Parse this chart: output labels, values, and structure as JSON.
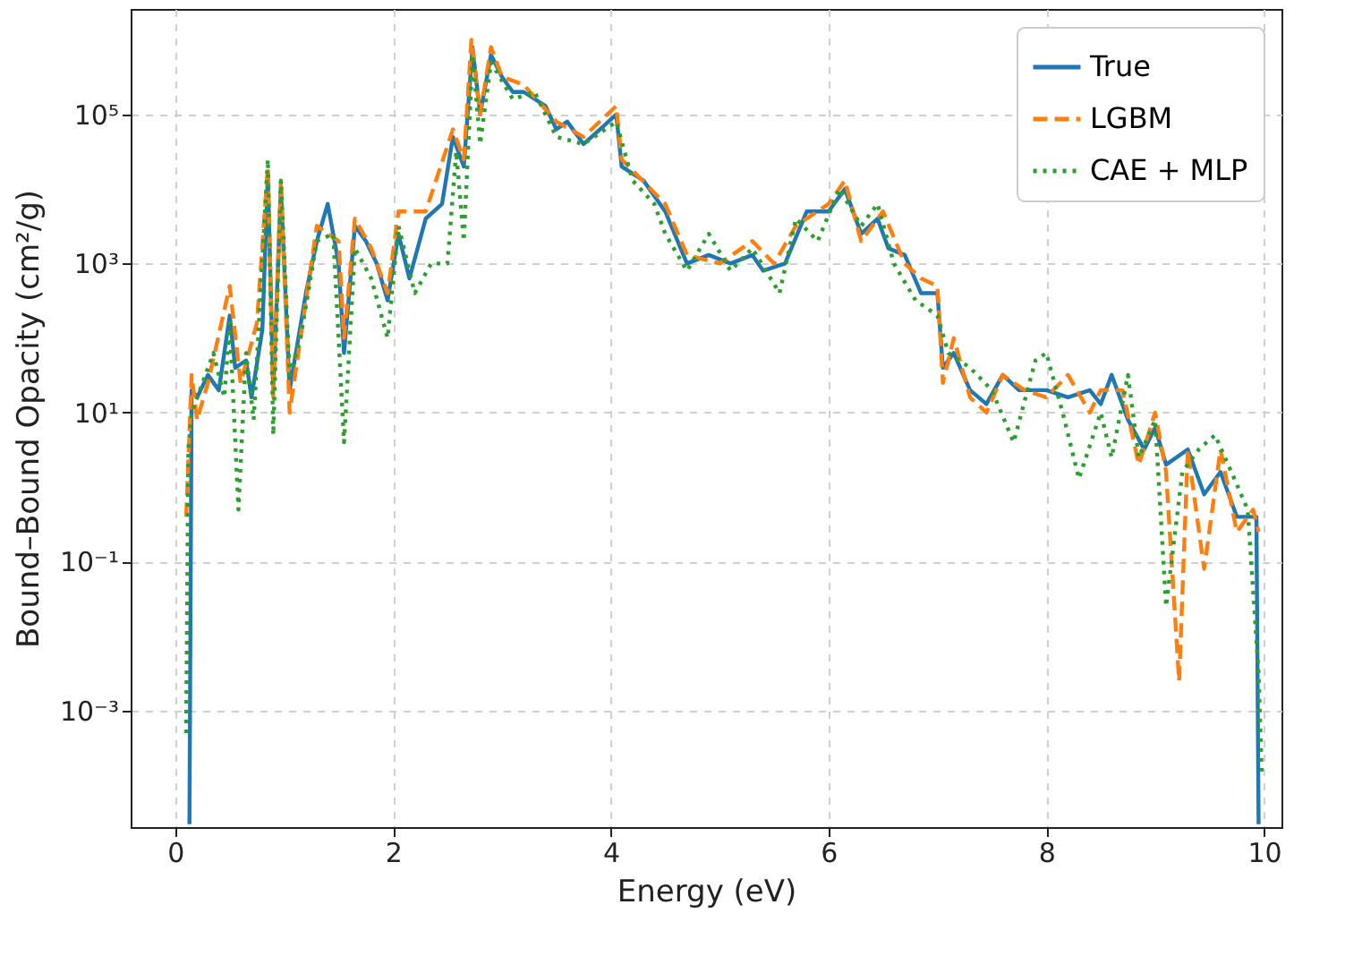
{
  "chart_data": {
    "type": "line",
    "xlabel": "Energy (eV)",
    "ylabel": "Bound–Bound Opacity (cm²/g)",
    "log": "y",
    "xlim": [
      -0.41,
      10.16
    ],
    "xticks": [
      0,
      2,
      4,
      6,
      8,
      10
    ],
    "ylim": [
      2.75e-05,
      2600000
    ],
    "yticks": [
      {
        "value": 0.001,
        "label": "10⁻³"
      },
      {
        "value": 0.1,
        "label": "10⁻¹"
      },
      {
        "value": 10,
        "label": "10¹"
      },
      {
        "value": 1000,
        "label": "10³"
      },
      {
        "value": 100000,
        "label": "10⁵"
      }
    ],
    "grid": true,
    "legend": "top right",
    "series": [
      {
        "name": "True",
        "color": "#1f77b4",
        "line_style": "solid",
        "x": [
          0.13,
          0.15,
          0.2,
          0.3,
          0.4,
          0.5,
          0.55,
          0.65,
          0.7,
          0.8,
          0.85,
          0.9,
          0.97,
          1.05,
          1.2,
          1.3,
          1.4,
          1.5,
          1.55,
          1.65,
          1.75,
          1.85,
          1.95,
          2.05,
          2.15,
          2.3,
          2.45,
          2.55,
          2.65,
          2.73,
          2.8,
          2.9,
          3.0,
          3.1,
          3.2,
          3.4,
          3.5,
          3.6,
          3.75,
          3.9,
          4.05,
          4.1,
          4.3,
          4.5,
          4.7,
          4.9,
          5.1,
          5.3,
          5.4,
          5.6,
          5.8,
          6.0,
          6.15,
          6.3,
          6.45,
          6.55,
          6.7,
          6.85,
          7.0,
          7.05,
          7.15,
          7.3,
          7.45,
          7.6,
          7.75,
          8.0,
          8.2,
          8.4,
          8.5,
          8.6,
          8.75,
          8.9,
          9.0,
          9.1,
          9.3,
          9.45,
          9.6,
          9.75,
          9.93,
          9.95
        ],
        "values": [
          3e-05,
          20,
          16,
          32,
          20,
          200,
          40,
          50,
          16,
          130,
          16000,
          20,
          10000,
          20,
          400,
          2000,
          6300,
          1000,
          63,
          3200,
          2000,
          1000,
          320,
          2500,
          630,
          4000,
          6300,
          50000,
          20000,
          800000,
          100000,
          630000,
          320000,
          200000,
          200000,
          130000,
          63000,
          80000,
          40000,
          63000,
          100000,
          20000,
          13000,
          5000,
          1000,
          1300,
          1000,
          1300,
          800,
          1000,
          5000,
          5000,
          10000,
          2500,
          4000,
          1600,
          1300,
          400,
          400,
          40,
          63,
          20,
          13,
          32,
          20,
          20,
          16,
          20,
          13,
          32,
          8,
          3.2,
          6.3,
          2,
          3.2,
          0.8,
          1.6,
          0.4,
          0.4,
          3e-05
        ]
      },
      {
        "name": "LGBM",
        "color": "#ff7f0e",
        "line_style": "dashed",
        "x": [
          0.1,
          0.15,
          0.2,
          0.3,
          0.5,
          0.6,
          0.75,
          0.85,
          0.9,
          0.97,
          1.05,
          1.3,
          1.5,
          1.55,
          1.65,
          1.8,
          1.95,
          2.05,
          2.3,
          2.55,
          2.65,
          2.72,
          2.8,
          2.9,
          3.0,
          3.2,
          3.5,
          3.75,
          4.05,
          4.1,
          4.5,
          4.7,
          5.0,
          5.3,
          5.5,
          5.7,
          6.0,
          6.15,
          6.3,
          6.5,
          6.7,
          6.85,
          7.0,
          7.05,
          7.15,
          7.3,
          7.45,
          7.6,
          7.8,
          8.0,
          8.2,
          8.4,
          8.5,
          8.7,
          8.85,
          9.0,
          9.1,
          9.22,
          9.3,
          9.45,
          9.6,
          9.75,
          9.9,
          9.95
        ],
        "values": [
          0.4,
          32,
          8,
          25,
          500,
          25,
          160,
          20000,
          16,
          13000,
          10,
          3200,
          2000,
          100,
          4000,
          1600,
          400,
          5000,
          5000,
          63000,
          25000,
          1000000,
          100000,
          800000,
          320000,
          250000,
          80000,
          50000,
          130000,
          25000,
          6300,
          1300,
          1000,
          2000,
          1000,
          3200,
          6300,
          13000,
          2000,
          5000,
          1000,
          630,
          500,
          25,
          100,
          16,
          10,
          32,
          20,
          16,
          32,
          10,
          20,
          20,
          2,
          10,
          1.6,
          0.0025,
          3.2,
          0.08,
          3.2,
          0.25,
          0.5,
          0.25
        ]
      },
      {
        "name": "CAE + MLP",
        "color": "#2ca02c",
        "line_style": "dotted",
        "x": [
          0.1,
          0.12,
          0.15,
          0.25,
          0.35,
          0.45,
          0.5,
          0.58,
          0.65,
          0.72,
          0.85,
          0.9,
          0.97,
          1.05,
          1.15,
          1.3,
          1.45,
          1.55,
          1.65,
          1.8,
          1.95,
          2.05,
          2.2,
          2.35,
          2.5,
          2.58,
          2.65,
          2.73,
          2.8,
          2.9,
          3.1,
          3.3,
          3.5,
          3.75,
          4.05,
          4.2,
          4.4,
          4.5,
          4.7,
          4.9,
          5.1,
          5.3,
          5.55,
          5.7,
          5.9,
          6.1,
          6.3,
          6.45,
          6.6,
          6.8,
          7.0,
          7.1,
          7.3,
          7.5,
          7.7,
          7.9,
          8.0,
          8.15,
          8.3,
          8.5,
          8.6,
          8.75,
          8.85,
          9.0,
          9.1,
          9.25,
          9.4,
          9.55,
          9.7,
          9.85,
          9.95,
          9.98
        ],
        "values": [
          0.0005,
          3.2,
          10,
          25,
          63,
          16,
          160,
          0.5,
          63,
          8,
          25000,
          5,
          13000,
          32,
          100,
          2000,
          2500,
          4,
          1600,
          630,
          100,
          3200,
          400,
          1000,
          1000,
          32000,
          2000,
          630000,
          40000,
          500000,
          160000,
          200000,
          50000,
          40000,
          80000,
          13000,
          6300,
          2500,
          800,
          2500,
          800,
          1600,
          400,
          4000,
          2000,
          10000,
          3200,
          6300,
          1000,
          320,
          200,
          63,
          40,
          20,
          4,
          50,
          63,
          10,
          1.3,
          10,
          2.5,
          32,
          2.5,
          8,
          0.025,
          1.6,
          3.2,
          5,
          1.6,
          0.5,
          0.0032,
          0.00013
        ]
      }
    ]
  }
}
